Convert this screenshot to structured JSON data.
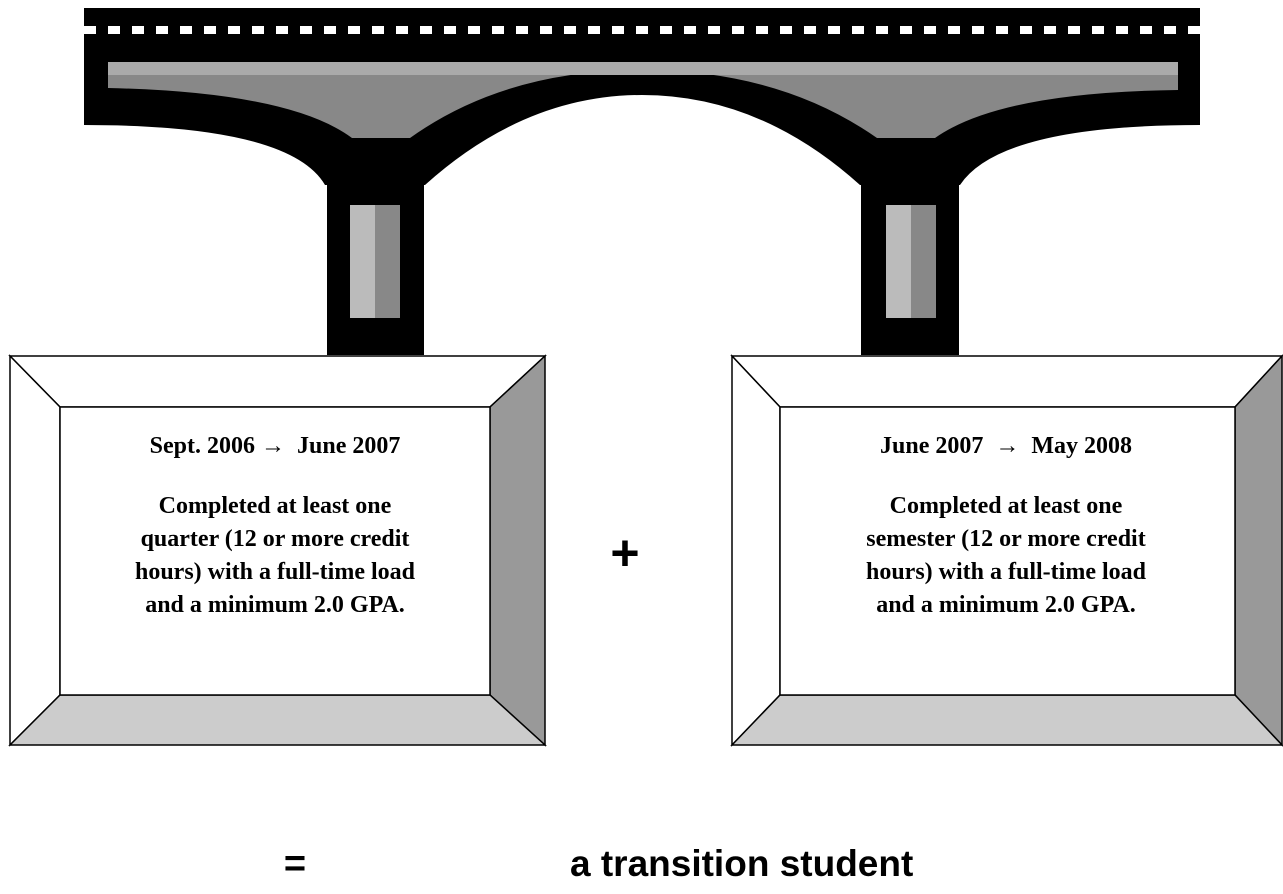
{
  "boxes": [
    {
      "period": "Sept. 2006 →  June 2007",
      "lines": [
        "Completed at least one",
        "quarter (12 or more credit",
        "hours) with a full-time load",
        "and a minimum 2.0 GPA."
      ]
    },
    {
      "period": "June 2007  →  May 2008",
      "lines": [
        "Completed at least one",
        "semester (12 or more credit",
        "hours) with a full-time load",
        "and a minimum 2.0 GPA."
      ]
    }
  ],
  "operator": "+",
  "result": {
    "operator": "=",
    "text": "a transition student"
  }
}
